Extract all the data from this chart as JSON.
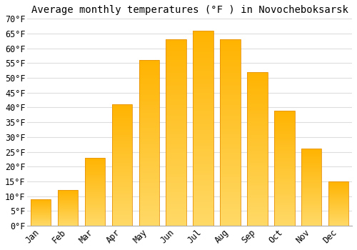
{
  "title": "Average monthly temperatures (°F ) in Novocheboksarsk",
  "months": [
    "Jan",
    "Feb",
    "Mar",
    "Apr",
    "May",
    "Jun",
    "Jul",
    "Aug",
    "Sep",
    "Oct",
    "Nov",
    "Dec"
  ],
  "values": [
    9,
    12,
    23,
    41,
    56,
    63,
    66,
    63,
    52,
    39,
    26,
    15
  ],
  "bar_color_top": "#FFB300",
  "bar_color_bottom": "#FFD966",
  "bar_edge_color": "#E6920A",
  "ylim": [
    0,
    70
  ],
  "yticks": [
    0,
    5,
    10,
    15,
    20,
    25,
    30,
    35,
    40,
    45,
    50,
    55,
    60,
    65,
    70
  ],
  "ytick_labels": [
    "0°F",
    "5°F",
    "10°F",
    "15°F",
    "20°F",
    "25°F",
    "30°F",
    "35°F",
    "40°F",
    "45°F",
    "50°F",
    "55°F",
    "60°F",
    "65°F",
    "70°F"
  ],
  "background_color": "#FFFFFF",
  "grid_color": "#DDDDDD",
  "title_fontsize": 10,
  "tick_fontsize": 8.5,
  "font_family": "monospace"
}
